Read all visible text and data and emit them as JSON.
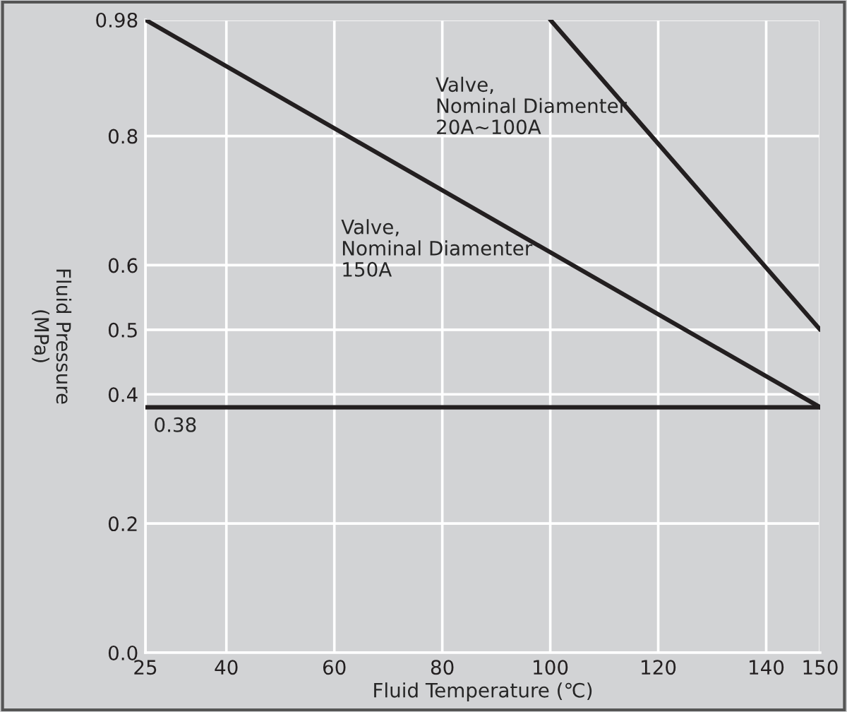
{
  "chart_data": {
    "type": "line",
    "xlabel": "Fluid Temperature (℃)",
    "ylabel": "Fluid Pressure\n(MPa)",
    "xlim": [
      25,
      150
    ],
    "xticks": [
      25,
      40,
      60,
      80,
      100,
      120,
      140,
      150
    ],
    "ylim": [
      0,
      0.98
    ],
    "yticks": [
      {
        "value": 0,
        "label": "0.0"
      },
      0.2,
      0.4,
      0.5,
      0.6,
      0.8,
      0.98
    ],
    "grid": true,
    "legend": false,
    "marker": "none",
    "line_style": "solid",
    "series": [
      {
        "color": "#231f20",
        "x": [
          25,
          150
        ],
        "values": [
          0.98,
          0.38
        ]
      },
      {
        "color": "#231f20",
        "x": [
          100,
          150
        ],
        "values": [
          0.98,
          0.5
        ]
      }
    ],
    "ref_lines": [
      {
        "axis": "y",
        "value": 0.38,
        "label": "0.38",
        "color": "#231f20"
      }
    ],
    "annotations": [
      "Valve,\nNominal Diamenter\n20A~100A",
      "Valve,\nNominal Diamenter\n150A"
    ]
  }
}
